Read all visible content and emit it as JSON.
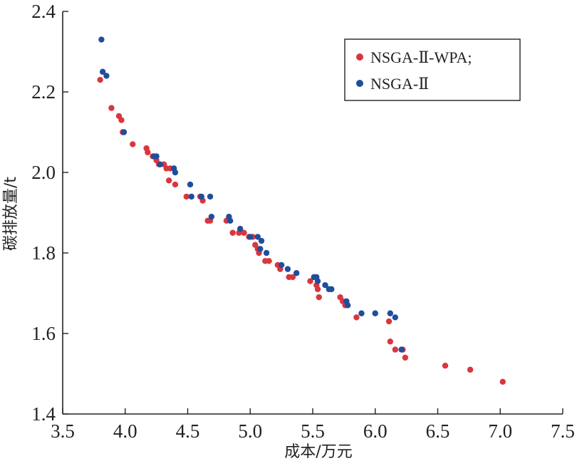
{
  "chart_data": {
    "type": "scatter",
    "xlabel": "成本/万元",
    "ylabel": "碳排放量/t",
    "xlim": [
      3.5,
      7.5
    ],
    "ylim": [
      1.4,
      2.4
    ],
    "x_ticks": [
      3.5,
      4.0,
      4.5,
      5.0,
      5.5,
      6.0,
      6.5,
      7.0,
      7.5
    ],
    "y_ticks": [
      1.4,
      1.6,
      1.8,
      2.0,
      2.2,
      2.4
    ],
    "x_tick_labels": [
      "3.5",
      "4.0",
      "4.5",
      "5.0",
      "5.5",
      "6.0",
      "6.5",
      "7.0",
      "7.5"
    ],
    "y_tick_labels": [
      "1.4",
      "1.6",
      "1.8",
      "2.0",
      "2.2",
      "2.4"
    ],
    "grid": false,
    "legend_position": "top-right",
    "series": [
      {
        "name": "NSGA-Ⅱ-WPA;",
        "color": "#d9363e",
        "x": [
          3.8,
          3.89,
          3.95,
          3.97,
          3.98,
          4.06,
          4.17,
          4.18,
          4.22,
          4.25,
          4.27,
          4.31,
          4.33,
          4.36,
          4.35,
          4.4,
          4.49,
          4.6,
          4.62,
          4.66,
          4.68,
          4.81,
          4.86,
          4.91,
          4.95,
          4.99,
          5.02,
          5.04,
          5.06,
          5.07,
          5.12,
          5.15,
          5.22,
          5.24,
          5.31,
          5.34,
          5.48,
          5.53,
          5.54,
          5.55,
          5.72,
          5.74,
          5.76,
          5.85,
          6.11,
          6.12,
          6.16,
          6.22,
          6.24,
          6.56,
          6.76,
          7.02
        ],
        "y": [
          2.23,
          2.16,
          2.14,
          2.13,
          2.1,
          2.07,
          2.06,
          2.05,
          2.04,
          2.03,
          2.02,
          2.02,
          2.01,
          2.01,
          1.98,
          1.97,
          1.94,
          1.94,
          1.93,
          1.88,
          1.88,
          1.88,
          1.85,
          1.85,
          1.85,
          1.84,
          1.84,
          1.82,
          1.81,
          1.8,
          1.78,
          1.78,
          1.77,
          1.76,
          1.74,
          1.74,
          1.73,
          1.72,
          1.71,
          1.69,
          1.69,
          1.68,
          1.67,
          1.64,
          1.63,
          1.58,
          1.56,
          1.56,
          1.54,
          1.52,
          1.51,
          1.48
        ]
      },
      {
        "name": "NSGA-Ⅱ",
        "color": "#1f4e9c",
        "x": [
          3.81,
          3.82,
          3.85,
          3.99,
          4.23,
          4.25,
          4.28,
          4.39,
          4.4,
          4.52,
          4.53,
          4.61,
          4.68,
          4.69,
          4.83,
          4.84,
          4.92,
          5.0,
          5.06,
          5.09,
          5.08,
          5.13,
          5.25,
          5.3,
          5.37,
          5.51,
          5.53,
          5.54,
          5.6,
          5.63,
          5.65,
          5.77,
          5.78,
          5.89,
          6.0,
          6.12,
          6.16,
          6.21
        ],
        "y": [
          2.33,
          2.25,
          2.24,
          2.1,
          2.04,
          2.04,
          2.02,
          2.01,
          2.0,
          1.97,
          1.94,
          1.94,
          1.94,
          1.89,
          1.89,
          1.88,
          1.86,
          1.84,
          1.84,
          1.83,
          1.81,
          1.8,
          1.77,
          1.76,
          1.75,
          1.74,
          1.74,
          1.73,
          1.72,
          1.71,
          1.71,
          1.68,
          1.67,
          1.65,
          1.65,
          1.65,
          1.64,
          1.56
        ]
      }
    ]
  }
}
